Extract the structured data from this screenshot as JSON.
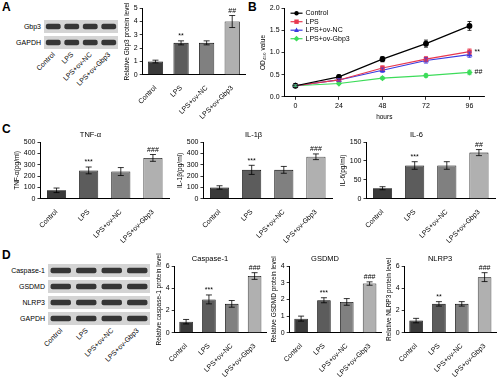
{
  "panel_labels": [
    "A",
    "B",
    "C",
    "D"
  ],
  "blots": [
    {
      "rows": [
        "Gbp3",
        "GAPDH"
      ],
      "lanes": [
        "Control",
        "LPS",
        "LPS+ov-NC",
        "LPS+ov-Gbp3"
      ]
    },
    {
      "rows": [
        "Caspase-1",
        "GSDMD",
        "NLRP3",
        "GAPDH"
      ],
      "lanes": [
        "Control",
        "LPS",
        "LPS+ov-NC",
        "LPS+ov-Gbp3"
      ]
    }
  ],
  "chart_data": [
    {
      "type": "bar",
      "y_label": "Relative Gbp3 protein level",
      "categories": [
        "Control",
        "LPS",
        "LPS+ov-NC",
        "LPS+ov-Gbp3"
      ],
      "values": [
        1.0,
        2.4,
        2.4,
        4.0
      ],
      "errors": [
        0.1,
        0.15,
        0.15,
        0.45
      ],
      "colors": [
        "#3a3a3a",
        "#5c5c5c",
        "#808080",
        "#b0b0b0"
      ],
      "ylim": [
        0,
        5
      ],
      "yticks": [
        0,
        1,
        2,
        3,
        4,
        5
      ],
      "grid": false,
      "annotations": [
        {
          "category": "LPS",
          "text": "**"
        },
        {
          "category": "LPS+ov-Gbp3",
          "text": "##"
        }
      ]
    },
    {
      "type": "line",
      "x_label": "hours",
      "y_label": "OD₄₅₀ value",
      "x": [
        0,
        24,
        48,
        72,
        96
      ],
      "xlim": [
        -6,
        104
      ],
      "xticks": [
        0,
        24,
        48,
        72,
        96
      ],
      "ylim": [
        0,
        2
      ],
      "yticks": [
        {
          "value": 0,
          "label": "0.0"
        },
        0.5,
        {
          "value": 1,
          "label": "1.0"
        },
        1.5,
        {
          "value": 2,
          "label": "2.0"
        }
      ],
      "grid": false,
      "legend": "upper left",
      "series": [
        {
          "name": "Control",
          "color": "#000000",
          "marker": "circle",
          "values": [
            0.25,
            0.45,
            0.85,
            1.2,
            1.6
          ],
          "errors": [
            0.02,
            0.04,
            0.06,
            0.08,
            0.1
          ]
        },
        {
          "name": "LPS",
          "color": "#e8384f",
          "marker": "square",
          "values": [
            0.25,
            0.38,
            0.65,
            0.85,
            1.02
          ],
          "errors": [
            0.02,
            0.03,
            0.05,
            0.06,
            0.06
          ]
        },
        {
          "name": "LPS+ov-NC",
          "color": "#3a3ae0",
          "marker": "triangle",
          "values": [
            0.25,
            0.38,
            0.6,
            0.82,
            0.95
          ],
          "errors": [
            0.02,
            0.03,
            0.05,
            0.06,
            0.06
          ]
        },
        {
          "name": "LPS+ov-Gbp3",
          "color": "#3ddc5a",
          "marker": "diamond",
          "values": [
            0.25,
            0.3,
            0.42,
            0.48,
            0.55
          ],
          "errors": [
            0.02,
            0.02,
            0.03,
            0.04,
            0.05
          ]
        }
      ],
      "annotations": [
        {
          "series": "LPS",
          "x": 96,
          "text": "**"
        },
        {
          "series": "LPS+ov-Gbp3",
          "x": 96,
          "text": "##"
        }
      ]
    },
    {
      "type": "bar",
      "title": "TNF-α",
      "y_label": "TNF-α(pg/ml)",
      "categories": [
        "Control",
        "LPS",
        "LPS+ov-NC",
        "LPS+ov-Gbp3"
      ],
      "values": [
        75,
        250,
        240,
        360
      ],
      "errors": [
        20,
        30,
        35,
        30
      ],
      "colors": [
        "#3a3a3a",
        "#5c5c5c",
        "#808080",
        "#b0b0b0"
      ],
      "ylim": [
        0,
        500
      ],
      "yticks": [
        0,
        100,
        200,
        300,
        400,
        500
      ],
      "grid": false,
      "annotations": [
        {
          "category": "LPS",
          "text": "***"
        },
        {
          "category": "LPS+ov-Gbp3",
          "text": "###"
        }
      ]
    },
    {
      "type": "bar",
      "title": "IL-1β",
      "y_label": "IL-1β(pg/ml)",
      "categories": [
        "Control",
        "LPS",
        "LPS+ov-NC",
        "LPS+ov-Gbp3"
      ],
      "values": [
        100,
        255,
        255,
        370
      ],
      "errors": [
        15,
        40,
        30,
        25
      ],
      "colors": [
        "#3a3a3a",
        "#5c5c5c",
        "#808080",
        "#b0b0b0"
      ],
      "ylim": [
        0,
        500
      ],
      "yticks": [
        0,
        100,
        200,
        300,
        400,
        500
      ],
      "grid": false,
      "annotations": [
        {
          "category": "LPS",
          "text": "***"
        },
        {
          "category": "LPS+ov-Gbp3",
          "text": "###"
        }
      ]
    },
    {
      "type": "bar",
      "title": "IL-6",
      "y_label": "IL-6(pg/ml)",
      "categories": [
        "Control",
        "LPS",
        "LPS+ov-NC",
        "LPS+ov-Gbp3"
      ],
      "values": [
        28,
        88,
        88,
        122
      ],
      "errors": [
        4,
        10,
        10,
        8
      ],
      "colors": [
        "#3a3a3a",
        "#5c5c5c",
        "#808080",
        "#b0b0b0"
      ],
      "ylim": [
        0,
        150
      ],
      "yticks": [
        0,
        50,
        100,
        150
      ],
      "grid": false,
      "annotations": [
        {
          "category": "LPS",
          "text": "***"
        },
        {
          "category": "LPS+ov-Gbp3",
          "text": "##"
        }
      ]
    },
    {
      "type": "bar",
      "title": "Caspase-1",
      "y_label": "Relative caspase-1 protein level",
      "categories": [
        "Control",
        "LPS",
        "LPS+ov-NC",
        "LPS+ov-Gbp3"
      ],
      "values": [
        1.0,
        3.0,
        2.6,
        5.1
      ],
      "errors": [
        0.2,
        0.4,
        0.3,
        0.3
      ],
      "colors": [
        "#3a3a3a",
        "#5c5c5c",
        "#808080",
        "#b0b0b0"
      ],
      "ylim": [
        0,
        6
      ],
      "yticks": [
        0,
        2,
        4,
        6
      ],
      "grid": false,
      "annotations": [
        {
          "category": "LPS",
          "text": "***"
        },
        {
          "category": "LPS+ov-Gbp3",
          "text": "###"
        }
      ]
    },
    {
      "type": "bar",
      "title": "GSDMD",
      "y_label": "Relative GSDMD protein level",
      "categories": [
        "Control",
        "LPS",
        "LPS+ov-NC",
        "LPS+ov-Gbp3"
      ],
      "values": [
        0.85,
        1.95,
        1.85,
        2.95
      ],
      "errors": [
        0.15,
        0.15,
        0.2,
        0.1
      ],
      "colors": [
        "#3a3a3a",
        "#5c5c5c",
        "#808080",
        "#b0b0b0"
      ],
      "ylim": [
        0,
        4
      ],
      "yticks": [
        0,
        1,
        2,
        3,
        4
      ],
      "grid": false,
      "annotations": [
        {
          "category": "LPS",
          "text": "***"
        },
        {
          "category": "LPS+ov-Gbp3",
          "text": "###"
        }
      ]
    },
    {
      "type": "bar",
      "title": "NLRP3",
      "y_label": "Relative NLRP3 protein level",
      "categories": [
        "Control",
        "LPS",
        "LPS+ov-NC",
        "LPS+ov-Gbp3"
      ],
      "values": [
        1.1,
        2.6,
        2.6,
        5.0
      ],
      "errors": [
        0.2,
        0.2,
        0.2,
        0.4
      ],
      "colors": [
        "#3a3a3a",
        "#5c5c5c",
        "#808080",
        "#b0b0b0"
      ],
      "ylim": [
        0,
        6
      ],
      "yticks": [
        0,
        2,
        4,
        6
      ],
      "grid": false,
      "annotations": [
        {
          "category": "LPS",
          "text": "**"
        },
        {
          "category": "LPS+ov-Gbp3",
          "text": "###"
        }
      ]
    }
  ]
}
